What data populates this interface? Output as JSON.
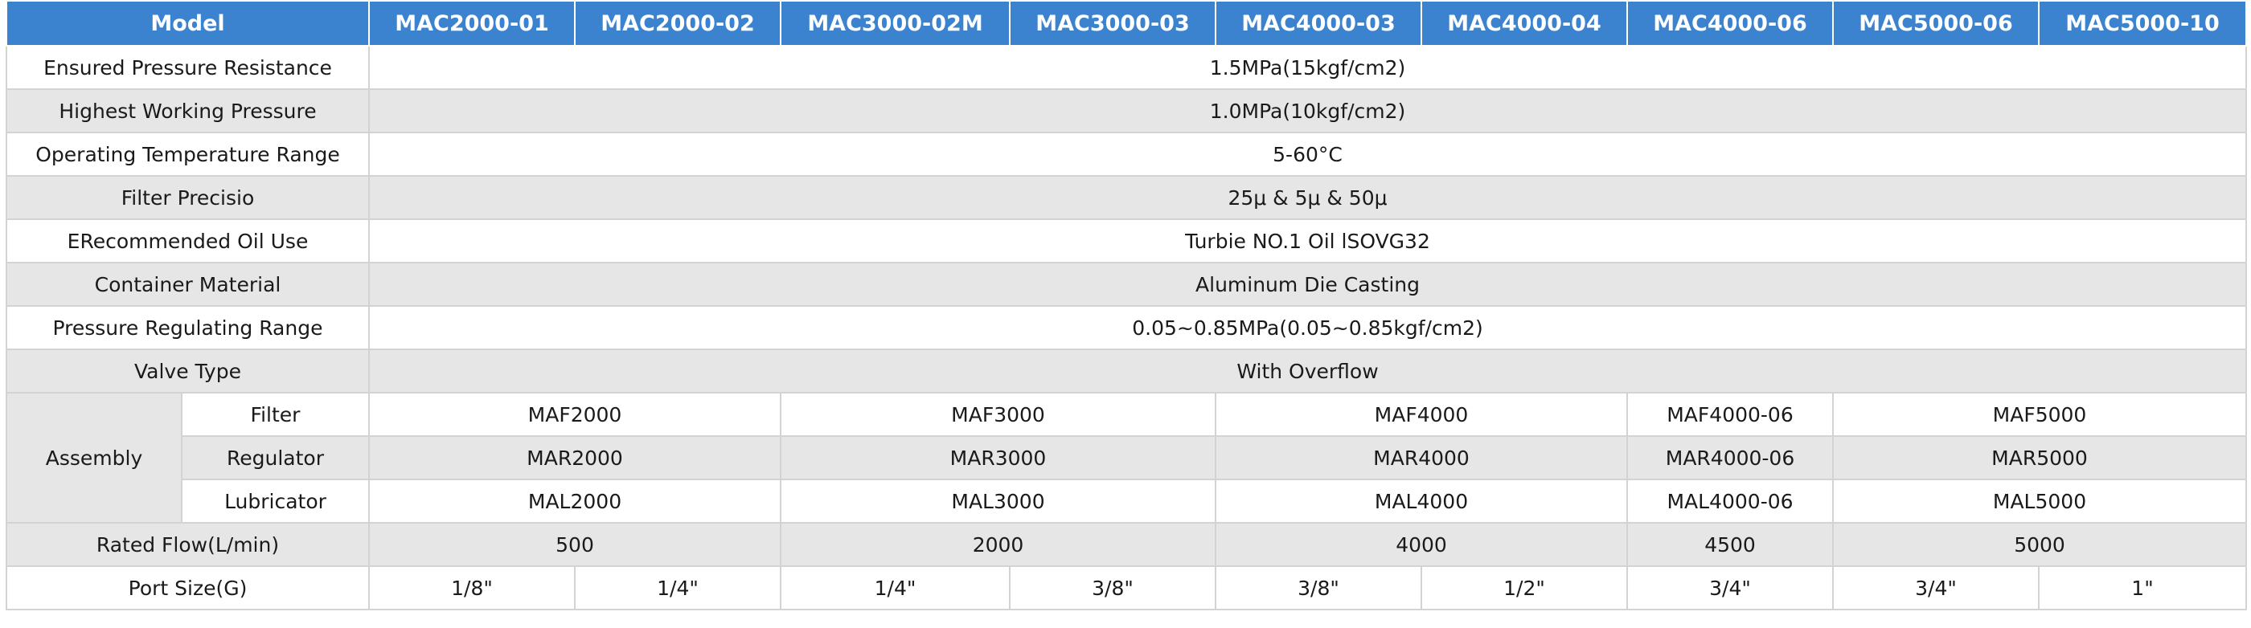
{
  "header": {
    "model_label": "Model",
    "models": [
      "MAC2000-01",
      "MAC2000-02",
      "MAC3000-02M",
      "MAC3000-03",
      "MAC4000-03",
      "MAC4000-04",
      "MAC4000-06",
      "MAC5000-06",
      "MAC5000-10"
    ]
  },
  "specs": [
    {
      "label": "Ensured Pressure Resistance",
      "value": "1.5MPa(15kgf/cm2)"
    },
    {
      "label": "Highest Working Pressure",
      "value": "1.0MPa(10kgf/cm2)"
    },
    {
      "label": "Operating Temperature Range",
      "value": "5-60°C"
    },
    {
      "label": "Filter Precisio",
      "value": "25μ & 5μ & 50μ"
    },
    {
      "label": "ERecommended Oil Use",
      "value": "Turbie NO.1 Oil lSOVG32"
    },
    {
      "label": "Container Material",
      "value": "Aluminum Die Casting"
    },
    {
      "label": "Pressure Regulating Range",
      "value": "0.05~0.85MPa(0.05~0.85kgf/cm2)"
    },
    {
      "label": "Valve Type",
      "value": "With Overflow"
    }
  ],
  "assembly": {
    "label": "Assembly",
    "rows": [
      {
        "label": "Filter",
        "values": [
          "MAF2000",
          "MAF3000",
          "MAF4000",
          "MAF4000-06",
          "MAF5000"
        ]
      },
      {
        "label": "Regulator",
        "values": [
          "MAR2000",
          "MAR3000",
          "MAR4000",
          "MAR4000-06",
          "MAR5000"
        ]
      },
      {
        "label": "Lubricator",
        "values": [
          "MAL2000",
          "MAL3000",
          "MAL4000",
          "MAL4000-06",
          "MAL5000"
        ]
      }
    ]
  },
  "rated_flow": {
    "label": "Rated Flow(L/min)",
    "values": [
      "500",
      "2000",
      "4000",
      "4500",
      "5000"
    ]
  },
  "port_size": {
    "label": "Port Size(G)",
    "values": [
      "1/8\"",
      "1/4\"",
      "1/4\"",
      "3/8\"",
      "3/8\"",
      "1/2\"",
      "3/4\"",
      "3/4\"",
      "1\""
    ]
  }
}
